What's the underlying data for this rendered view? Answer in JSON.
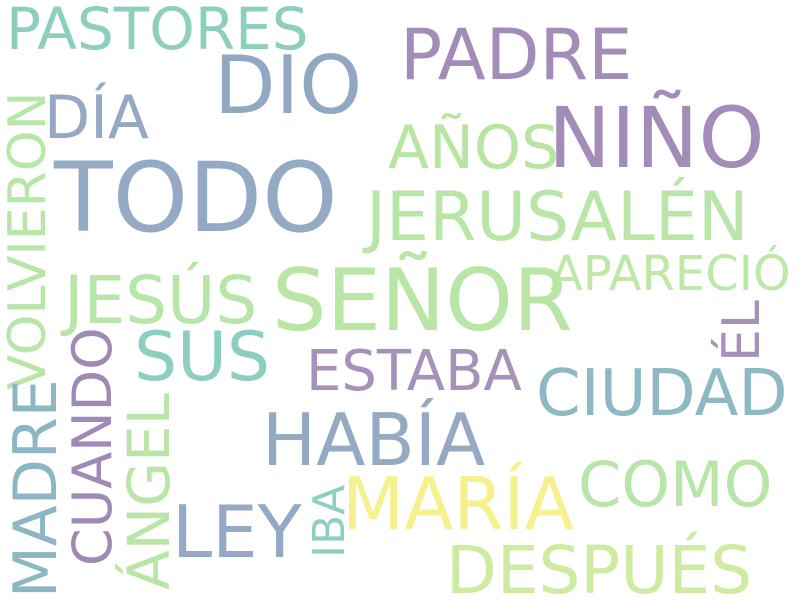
{
  "words": {
    "pastores": {
      "text": "PASTORES",
      "color": "#8ccfbe"
    },
    "padre": {
      "text": "PADRE",
      "color": "#a38cb8"
    },
    "dio": {
      "text": "DIO",
      "color": "#91a7c2"
    },
    "dia": {
      "text": "DÍA",
      "color": "#95a9c5"
    },
    "nino": {
      "text": "NIÑO",
      "color": "#a38cb8"
    },
    "anos": {
      "text": "AÑOS",
      "color": "#b8e6a2"
    },
    "todo": {
      "text": "TODO",
      "color": "#93a9c4"
    },
    "jerusalen": {
      "text": "JERUSALÉN",
      "color": "#b9e6a7"
    },
    "aparecio": {
      "text": "APARECIÓ",
      "color": "#bde8a6"
    },
    "jesus": {
      "text": "JESÚS",
      "color": "#b8e6a8"
    },
    "senor": {
      "text": "SEÑOR",
      "color": "#b9e6a5"
    },
    "sus": {
      "text": "SUS",
      "color": "#8ccfc0"
    },
    "estaba": {
      "text": "ESTABA",
      "color": "#a692b9"
    },
    "ciudad": {
      "text": "CIUDAD",
      "color": "#8db8c4"
    },
    "habia": {
      "text": "HABÍA",
      "color": "#94aac3"
    },
    "como": {
      "text": "COMO",
      "color": "#b8e6a8"
    },
    "maria": {
      "text": "MARÍA",
      "color": "#f6f08f"
    },
    "ley": {
      "text": "LEY",
      "color": "#93a9c4"
    },
    "despues": {
      "text": "DESPUÉS",
      "color": "#cdeba1"
    },
    "volvieron": {
      "text": "VOLVIERON",
      "color": "#b8e6a8"
    },
    "madre": {
      "text": "MADRE",
      "color": "#8bb6c4"
    },
    "cuando": {
      "text": "CUANDO",
      "color": "#a08ab5"
    },
    "angel": {
      "text": "ÁNGEL",
      "color": "#b9e6a7"
    },
    "iba": {
      "text": "IBA",
      "color": "#8fcfc2"
    },
    "el": {
      "text": "ÉL",
      "color": "#a692b9"
    }
  }
}
